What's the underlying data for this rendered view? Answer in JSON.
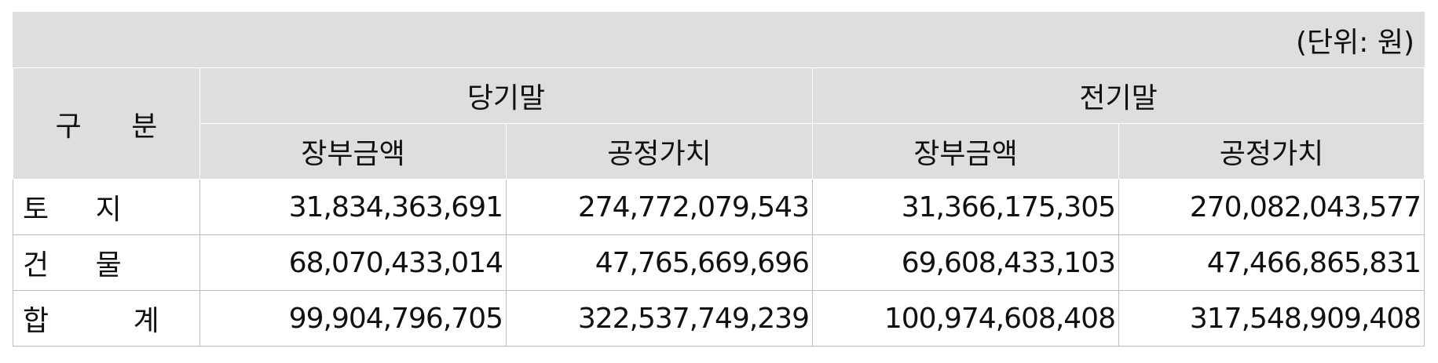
{
  "unit_label": "(단위: 원)",
  "header": {
    "category": "구 분",
    "group_current": "당기말",
    "group_prior": "전기말",
    "sub_book": "장부금액",
    "sub_fair": "공정가치"
  },
  "rows": [
    {
      "label": "토 지",
      "current_book": "31,834,363,691",
      "current_fair": "274,772,079,543",
      "prior_book": "31,366,175,305",
      "prior_fair": "270,082,043,577"
    },
    {
      "label": "건 물",
      "current_book": "68,070,433,014",
      "current_fair": "47,765,669,696",
      "prior_book": "69,608,433,103",
      "prior_fair": "47,466,865,831"
    },
    {
      "label": "합 계",
      "current_book": "99,904,796,705",
      "current_fair": "322,537,749,239",
      "prior_book": "100,974,608,408",
      "prior_fair": "317,548,909,408"
    }
  ],
  "colors": {
    "header_bg": "#dedede",
    "grid_line": "#bdbdbd",
    "body_bg": "#ffffff"
  }
}
